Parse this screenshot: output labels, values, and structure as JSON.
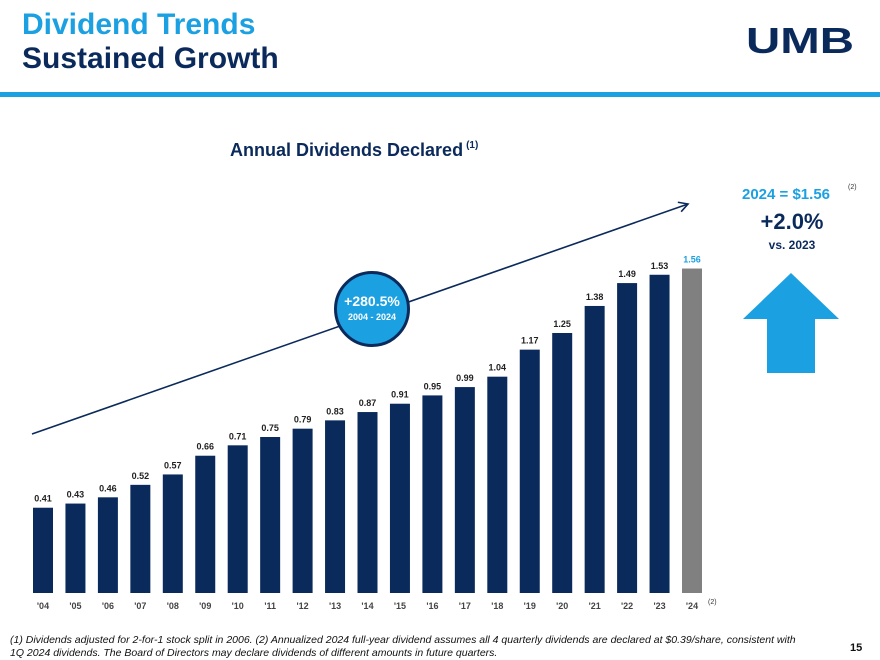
{
  "header": {
    "title_line1": "Dividend Trends",
    "title_line2": "Sustained Growth",
    "logo_text": "UMB",
    "accent_color": "#1ba0e2",
    "brand_color": "#0b2a5c"
  },
  "chart_data": {
    "type": "bar",
    "title": "Annual Dividends Declared",
    "title_note": "(1)",
    "categories": [
      "'04",
      "'05",
      "'06",
      "'07",
      "'08",
      "'09",
      "'10",
      "'11",
      "'12",
      "'13",
      "'14",
      "'15",
      "'16",
      "'17",
      "'18",
      "'19",
      "'20",
      "'21",
      "'22",
      "'23",
      "'24"
    ],
    "values": [
      0.41,
      0.43,
      0.46,
      0.52,
      0.57,
      0.66,
      0.71,
      0.75,
      0.79,
      0.83,
      0.87,
      0.91,
      0.95,
      0.99,
      1.04,
      1.17,
      1.25,
      1.38,
      1.49,
      1.53,
      1.56
    ],
    "data_labels": [
      "0.41",
      "0.43",
      "0.46",
      "0.52",
      "0.57",
      "0.66",
      "0.71",
      "0.75",
      "0.79",
      "0.83",
      "0.87",
      "0.91",
      "0.95",
      "0.99",
      "1.04",
      "1.17",
      "1.25",
      "1.38",
      "1.49",
      "1.53",
      "1.56"
    ],
    "last_category_note": "(2)",
    "ylim": [
      0,
      1.7
    ],
    "bar_color": "#0b2a5c",
    "highlight_bar_color": "#808080",
    "highlight_label_color": "#1ba0e2",
    "grid": false,
    "annotation": {
      "growth": "+280.5%",
      "period": "2004 - 2024"
    }
  },
  "sidebar": {
    "headline": "2024 = $1.56",
    "headline_note": "(2)",
    "change": "+2.0%",
    "comparison": "vs. 2023"
  },
  "footer": {
    "footnote": "(1) Dividends adjusted for 2-for-1 stock split in 2006. (2) Annualized 2024 full-year dividend assumes all 4 quarterly dividends are declared at $0.39/share, consistent with 1Q 2024 dividends. The Board of Directors may declare dividends of different amounts in future quarters.",
    "page_number": "15"
  }
}
